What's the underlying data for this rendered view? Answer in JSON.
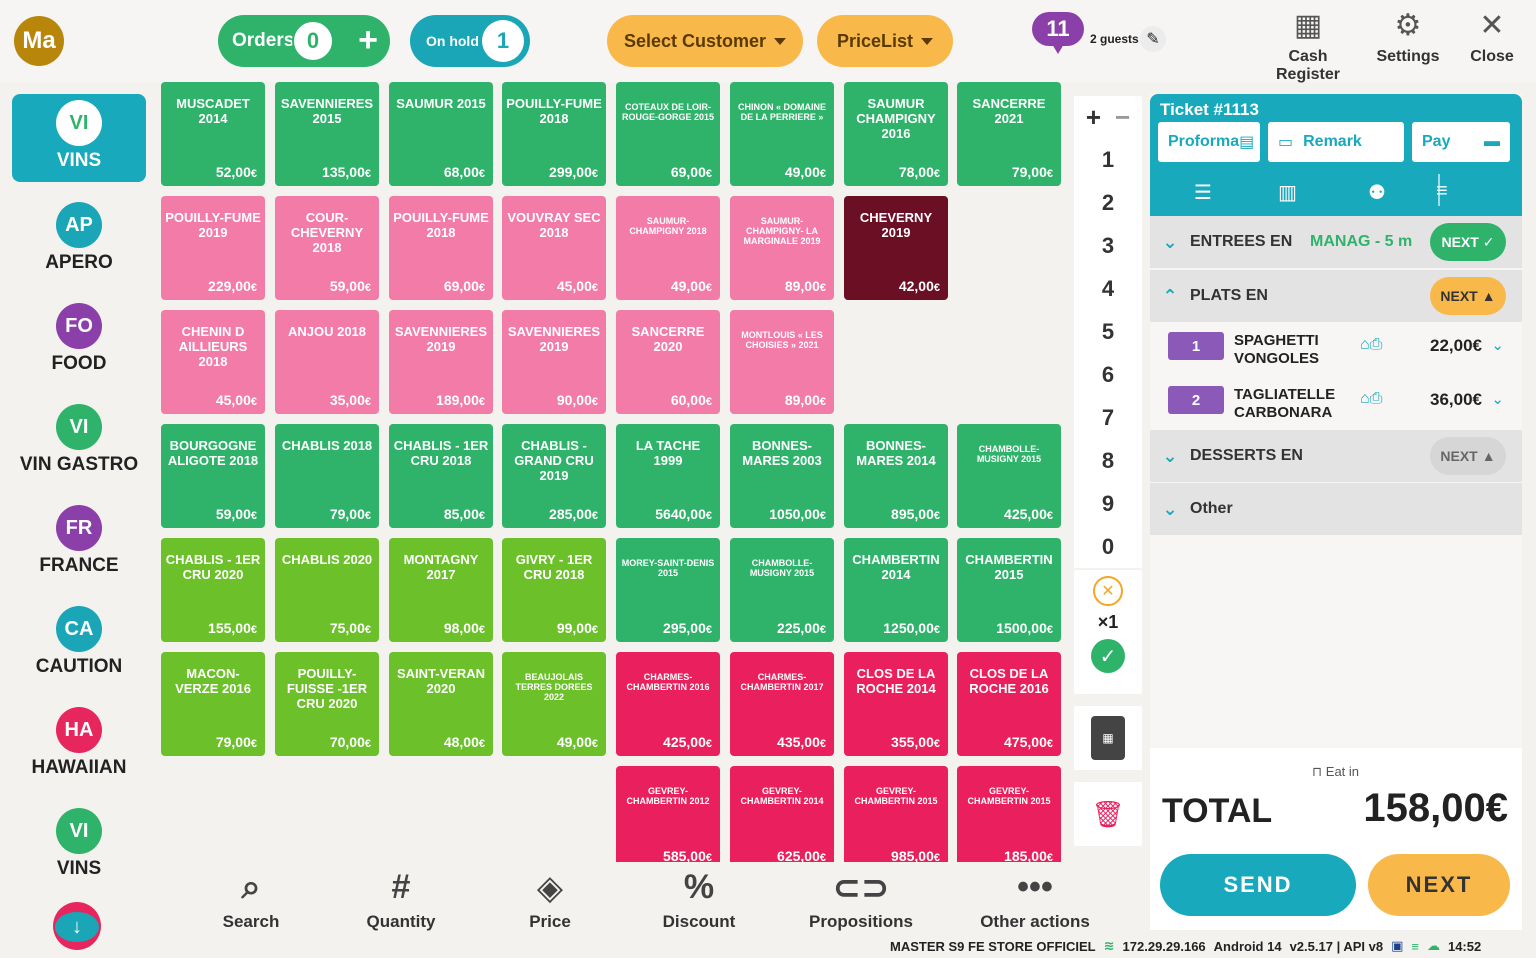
{
  "header": {
    "avatar": "Ma",
    "orders_label": "Orders",
    "orders_count": "0",
    "onhold_label": "On hold",
    "onhold_count": "1",
    "select_customer": "Select Customer",
    "pricelist": "PriceList",
    "guest_count": "11",
    "guests_text": "2 guests",
    "cash_register": "Cash Register",
    "settings": "Settings",
    "close": "Close"
  },
  "categories": [
    {
      "abbr": "VI",
      "label": "VINS",
      "color": "#2fb36b",
      "active": true
    },
    {
      "abbr": "AP",
      "label": "APERO",
      "color": "#1aa6b7"
    },
    {
      "abbr": "FO",
      "label": "FOOD",
      "color": "#8b3fa8"
    },
    {
      "abbr": "VI",
      "label": "VIN GASTRO",
      "color": "#2fb36b"
    },
    {
      "abbr": "FR",
      "label": "FRANCE",
      "color": "#8b3fa8"
    },
    {
      "abbr": "CA",
      "label": "CAUTION",
      "color": "#1aa6b7"
    },
    {
      "abbr": "HA",
      "label": "HAWAIIAN",
      "color": "#e8265e"
    },
    {
      "abbr": "VI",
      "label": "VINS",
      "color": "#2fb36b"
    }
  ],
  "products": [
    {
      "name": "MUSCADET 2014",
      "price": "52,00",
      "color": "#2fb36b",
      "row": 0,
      "col": 0
    },
    {
      "name": "SAVENNIERES 2015",
      "price": "135,00",
      "color": "#2fb36b",
      "row": 0,
      "col": 1
    },
    {
      "name": "SAUMUR 2015",
      "price": "68,00",
      "color": "#2fb36b",
      "row": 0,
      "col": 2
    },
    {
      "name": "POUILLY-FUME 2018",
      "price": "299,00",
      "color": "#2fb36b",
      "row": 0,
      "col": 3
    },
    {
      "name": "COTEAUX DE LOIR- ROUGE-GORGE 2015",
      "price": "69,00",
      "color": "#2fb36b",
      "row": 0,
      "col": 4,
      "small": true
    },
    {
      "name": "CHINON « DOMAINE DE LA PERRIERE »",
      "price": "49,00",
      "color": "#2fb36b",
      "row": 0,
      "col": 5,
      "small": true
    },
    {
      "name": "SAUMUR CHAMPIGNY 2016",
      "price": "78,00",
      "color": "#2fb36b",
      "row": 0,
      "col": 6
    },
    {
      "name": "SANCERRE 2021",
      "price": "79,00",
      "color": "#2fb36b",
      "row": 0,
      "col": 7
    },
    {
      "name": "POUILLY-FUME 2019",
      "price": "229,00",
      "color": "#f27ba7",
      "row": 1,
      "col": 0
    },
    {
      "name": "COUR-CHEVERNY 2018",
      "price": "59,00",
      "color": "#f27ba7",
      "row": 1,
      "col": 1
    },
    {
      "name": "POUILLY-FUME 2018",
      "price": "69,00",
      "color": "#f27ba7",
      "row": 1,
      "col": 2
    },
    {
      "name": "VOUVRAY SEC 2018",
      "price": "45,00",
      "color": "#f27ba7",
      "row": 1,
      "col": 3
    },
    {
      "name": "SAUMUR-CHAMPIGNY 2018",
      "price": "49,00",
      "color": "#f27ba7",
      "row": 1,
      "col": 4,
      "small": true
    },
    {
      "name": "SAUMUR-CHAMPIGNY- LA MARGINALE 2019",
      "price": "89,00",
      "color": "#f27ba7",
      "row": 1,
      "col": 5,
      "small": true
    },
    {
      "name": "CHEVERNY 2019",
      "price": "42,00",
      "color": "#6b0f24",
      "row": 1,
      "col": 6
    },
    {
      "name": "CHENIN D AILLIEURS 2018",
      "price": "45,00",
      "color": "#f27ba7",
      "row": 2,
      "col": 0
    },
    {
      "name": "ANJOU 2018",
      "price": "35,00",
      "color": "#f27ba7",
      "row": 2,
      "col": 1
    },
    {
      "name": "SAVENNIERES 2019",
      "price": "189,00",
      "color": "#f27ba7",
      "row": 2,
      "col": 2
    },
    {
      "name": "SAVENNIERES 2019",
      "price": "90,00",
      "color": "#f27ba7",
      "row": 2,
      "col": 3
    },
    {
      "name": "SANCERRE 2020",
      "price": "60,00",
      "color": "#f27ba7",
      "row": 2,
      "col": 4
    },
    {
      "name": "MONTLOUIS « LES CHOISIES » 2021",
      "price": "89,00",
      "color": "#f27ba7",
      "row": 2,
      "col": 5,
      "small": true
    },
    {
      "name": "BOURGOGNE ALIGOTE 2018",
      "price": "59,00",
      "color": "#2fb36b",
      "row": 3,
      "col": 0
    },
    {
      "name": "CHABLIS 2018",
      "price": "79,00",
      "color": "#2fb36b",
      "row": 3,
      "col": 1
    },
    {
      "name": "CHABLIS - 1ER CRU 2018",
      "price": "85,00",
      "color": "#2fb36b",
      "row": 3,
      "col": 2
    },
    {
      "name": "CHABLIS - GRAND CRU 2019",
      "price": "285,00",
      "color": "#2fb36b",
      "row": 3,
      "col": 3
    },
    {
      "name": "LA TACHE 1999",
      "price": "5640,00",
      "color": "#2fb36b",
      "row": 3,
      "col": 4
    },
    {
      "name": "BONNES-MARES 2003",
      "price": "1050,00",
      "color": "#2fb36b",
      "row": 3,
      "col": 5
    },
    {
      "name": "BONNES-MARES 2014",
      "price": "895,00",
      "color": "#2fb36b",
      "row": 3,
      "col": 6
    },
    {
      "name": "CHAMBOLLE-MUSIGNY 2015",
      "price": "425,00",
      "color": "#2fb36b",
      "row": 3,
      "col": 7,
      "small": true
    },
    {
      "name": "CHABLIS - 1ER CRU 2020",
      "price": "155,00",
      "color": "#6cc12a",
      "row": 4,
      "col": 0
    },
    {
      "name": "CHABLIS 2020",
      "price": "75,00",
      "color": "#6cc12a",
      "row": 4,
      "col": 1
    },
    {
      "name": "MONTAGNY 2017",
      "price": "98,00",
      "color": "#6cc12a",
      "row": 4,
      "col": 2
    },
    {
      "name": "GIVRY - 1ER CRU 2018",
      "price": "99,00",
      "color": "#6cc12a",
      "row": 4,
      "col": 3
    },
    {
      "name": "MOREY-SAINT-DENIS 2015",
      "price": "295,00",
      "color": "#2fb36b",
      "row": 4,
      "col": 4,
      "small": true
    },
    {
      "name": "CHAMBOLLE-MUSIGNY 2015",
      "price": "225,00",
      "color": "#2fb36b",
      "row": 4,
      "col": 5,
      "small": true
    },
    {
      "name": "CHAMBERTIN 2014",
      "price": "1250,00",
      "color": "#2fb36b",
      "row": 4,
      "col": 6
    },
    {
      "name": "CHAMBERTIN 2015",
      "price": "1500,00",
      "color": "#2fb36b",
      "row": 4,
      "col": 7
    },
    {
      "name": "MACON-VERZE 2016",
      "price": "79,00",
      "color": "#6cc12a",
      "row": 5,
      "col": 0
    },
    {
      "name": "POUILLY-FUISSE -1ER CRU 2020",
      "price": "70,00",
      "color": "#6cc12a",
      "row": 5,
      "col": 1
    },
    {
      "name": "SAINT-VERAN 2020",
      "price": "48,00",
      "color": "#6cc12a",
      "row": 5,
      "col": 2
    },
    {
      "name": "BEAUJOLAIS TERRES DOREES 2022",
      "price": "49,00",
      "color": "#6cc12a",
      "row": 5,
      "col": 3,
      "small": true
    },
    {
      "name": "CHARMES-CHAMBERTIN 2016",
      "price": "425,00",
      "color": "#ea1f5d",
      "row": 5,
      "col": 4,
      "small": true
    },
    {
      "name": "CHARMES-CHAMBERTIN 2017",
      "price": "435,00",
      "color": "#ea1f5d",
      "row": 5,
      "col": 5,
      "small": true
    },
    {
      "name": "CLOS DE LA ROCHE 2014",
      "price": "355,00",
      "color": "#ea1f5d",
      "row": 5,
      "col": 6
    },
    {
      "name": "CLOS DE LA ROCHE 2016",
      "price": "475,00",
      "color": "#ea1f5d",
      "row": 5,
      "col": 7
    },
    {
      "name": "GEVREY-CHAMBERTIN 2012",
      "price": "585,00",
      "color": "#ea1f5d",
      "row": 6,
      "col": 4,
      "small": true
    },
    {
      "name": "GEVREY-CHAMBERTIN 2014",
      "price": "625,00",
      "color": "#ea1f5d",
      "row": 6,
      "col": 5,
      "small": true
    },
    {
      "name": "GEVREY-CHAMBERTIN 2015",
      "price": "985,00",
      "color": "#ea1f5d",
      "row": 6,
      "col": 6,
      "small": true
    },
    {
      "name": "GEVREY-CHAMBERTIN 2015",
      "price": "185,00",
      "color": "#ea1f5d",
      "row": 6,
      "col": 7,
      "small": true
    }
  ],
  "currency": "€",
  "numpad": {
    "keys": [
      "1",
      "2",
      "3",
      "4",
      "5",
      "6",
      "7",
      "8",
      "9",
      "0"
    ],
    "multiplier": "×1"
  },
  "ticket": {
    "title": "Ticket #1113",
    "proforma": "Proforma",
    "remark": "Remark",
    "pay": "Pay",
    "sections": [
      {
        "name": "ENTREES EN",
        "manag": "MANAG - 5 m",
        "next": "NEXT",
        "state": "green"
      },
      {
        "name": "PLATS EN",
        "next": "NEXT",
        "state": "orange",
        "expanded": true
      },
      {
        "name": "DESSERTS EN",
        "next": "NEXT",
        "state": "grey"
      },
      {
        "name": "Other"
      }
    ],
    "items": [
      {
        "qty": "1",
        "name": "SPAGHETTI VONGOLES",
        "price": "22,00€"
      },
      {
        "qty": "2",
        "name": "TAGLIATELLE CARBONARA",
        "price": "36,00€"
      }
    ],
    "eat_in": "Eat in",
    "total_label": "TOTAL",
    "total_value": "158,00€",
    "send": "SEND",
    "next": "NEXT"
  },
  "bottom_actions": [
    "Search",
    "Quantity",
    "Price",
    "Discount",
    "Propositions",
    "Other actions"
  ],
  "status": {
    "store": "MASTER S9 FE STORE OFFICIEL",
    "ip": "172.29.29.166",
    "android": "Android 14",
    "version": "v2.5.17 | API v8",
    "time": "14:52"
  }
}
